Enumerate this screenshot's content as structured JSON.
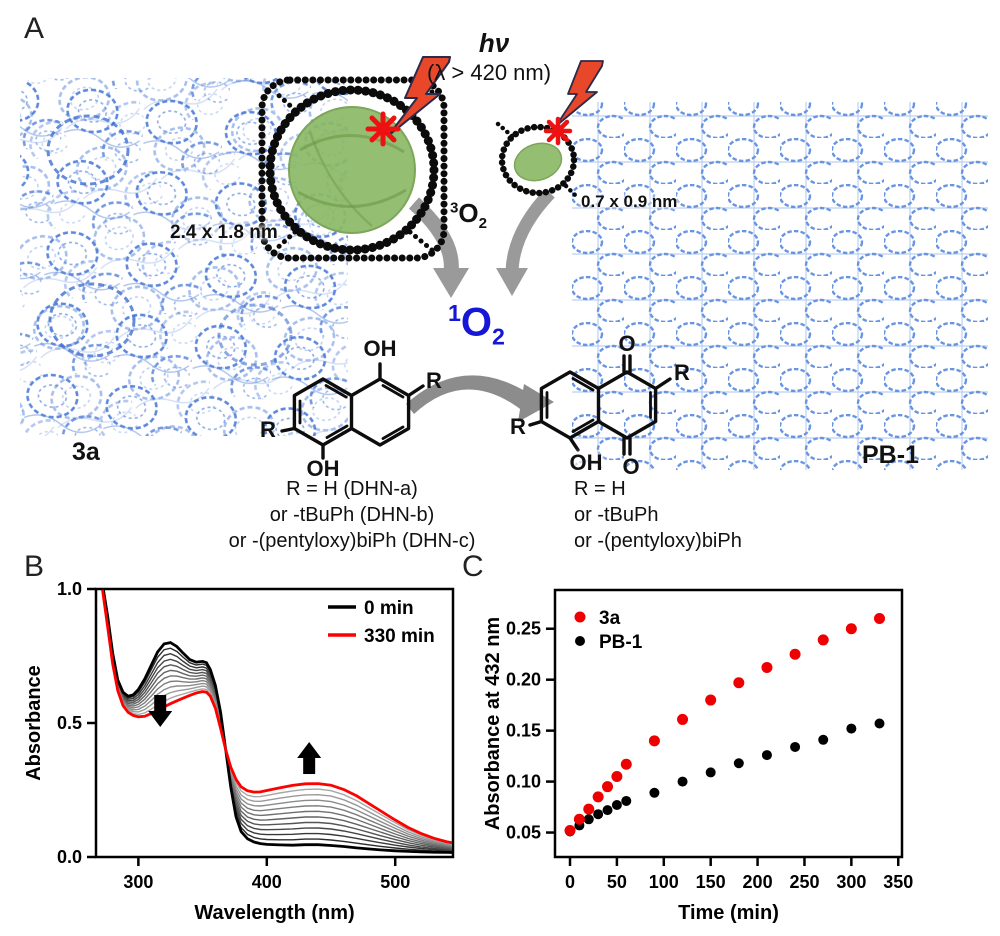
{
  "figure": {
    "panel_a": {
      "label": "A",
      "hv": "hν",
      "wavelength_condition": "(λ > 420 nm)",
      "pore_size_left": "2.4 x 1.8 nm",
      "pore_size_right": "0.7 x 0.9 nm",
      "triplet_oxygen": {
        "sup": "3",
        "o": "O",
        "sub": "2"
      },
      "singlet_oxygen": {
        "sup": "1",
        "o": "O",
        "sub": "2"
      },
      "material_left": "3a",
      "material_right": "PB-1",
      "dhn_labels": {
        "oh_top": "OH",
        "r_top": "R",
        "r_bottom": "R",
        "oh_bottom": "OH"
      },
      "product_labels": {
        "o_top": "O",
        "r_top": "R",
        "r_left": "R",
        "oh_bottom": "OH",
        "o_bottom": "O"
      },
      "substituents_left": [
        "R = H (DHN-a)",
        "or -tBuPh (DHN-b)",
        "or -(pentyloxy)biPh (DHN-c)"
      ],
      "substituents_right": [
        "R = H",
        "or -tBuPh",
        "or -(pentyloxy)biPh"
      ],
      "colors": {
        "framework_blue": "#4f7ed8",
        "framework_blue_right": "#5b8ce0",
        "pore_green": "#8cba68",
        "lightning_red": "#e8472a",
        "spark_red": "#ee1111",
        "singlet_blue": "#1616d6",
        "arrow_gray": "#8c8c8c"
      }
    },
    "panel_b": {
      "label": "B"
    },
    "panel_c": {
      "label": "C"
    }
  },
  "chart_data": [
    {
      "id": "panel-b",
      "type": "line",
      "xlabel": "Wavelength (nm)",
      "ylabel": "Absorbance",
      "xlim": [
        267,
        545
      ],
      "ylim": [
        0,
        1.0
      ],
      "x_ticks": [
        300,
        400,
        500
      ],
      "x_tick_labels": [
        "300",
        "400",
        "500"
      ],
      "y_ticks": [
        0.0,
        0.5,
        1.0
      ],
      "y_tick_labels": [
        "0.0",
        "0.5",
        "1.0"
      ],
      "legend": [
        {
          "label": "0 min",
          "color": "#000000"
        },
        {
          "label": "330 min",
          "color": "#ff0000"
        }
      ],
      "intermediate_curves": 10,
      "wavelength_nm": [
        267,
        272,
        276,
        280,
        284,
        288,
        292,
        296,
        300,
        305,
        310,
        315,
        320,
        325,
        330,
        335,
        340,
        345,
        350,
        353,
        356,
        360,
        364,
        368,
        372,
        376,
        380,
        385,
        390,
        395,
        400,
        410,
        420,
        430,
        440,
        450,
        460,
        470,
        480,
        490,
        500,
        510,
        520,
        530,
        540,
        550
      ],
      "series": [
        {
          "name": "0 min",
          "color": "#000000",
          "values": [
            1.08,
            1.02,
            0.9,
            0.76,
            0.66,
            0.615,
            0.6,
            0.605,
            0.625,
            0.665,
            0.715,
            0.765,
            0.795,
            0.8,
            0.785,
            0.76,
            0.737,
            0.727,
            0.73,
            0.725,
            0.7,
            0.64,
            0.54,
            0.4,
            0.26,
            0.15,
            0.095,
            0.068,
            0.056,
            0.05,
            0.047,
            0.045,
            0.044,
            0.046,
            0.046,
            0.043,
            0.039,
            0.034,
            0.03,
            0.026,
            0.023,
            0.021,
            0.019,
            0.018,
            0.017,
            0.016
          ]
        },
        {
          "name": "330 min",
          "color": "#ff0000",
          "values": [
            1.08,
            1.0,
            0.86,
            0.72,
            0.62,
            0.565,
            0.54,
            0.528,
            0.523,
            0.525,
            0.535,
            0.548,
            0.56,
            0.572,
            0.583,
            0.593,
            0.603,
            0.612,
            0.617,
            0.615,
            0.6,
            0.555,
            0.48,
            0.4,
            0.335,
            0.29,
            0.262,
            0.247,
            0.242,
            0.243,
            0.248,
            0.258,
            0.267,
            0.273,
            0.274,
            0.268,
            0.252,
            0.228,
            0.198,
            0.168,
            0.138,
            0.11,
            0.088,
            0.07,
            0.057,
            0.048
          ]
        }
      ],
      "annotations": [
        {
          "dir": "down",
          "x_nm": 317,
          "y_tip": 0.485
        },
        {
          "dir": "up",
          "x_nm": 433,
          "y_tip": 0.429
        }
      ]
    },
    {
      "id": "panel-c",
      "type": "scatter",
      "xlabel": "Time (min)",
      "ylabel": "Absorbance at 432 nm",
      "xlim": [
        -16,
        354
      ],
      "ylim": [
        0.026,
        0.288
      ],
      "x_ticks": [
        0,
        50,
        100,
        150,
        200,
        250,
        300,
        350
      ],
      "x_tick_labels": [
        "0",
        "50",
        "100",
        "150",
        "200",
        "250",
        "300",
        "350"
      ],
      "y_ticks": [
        0.05,
        0.1,
        0.15,
        0.2,
        0.25
      ],
      "y_tick_labels": [
        "0.05",
        "0.10",
        "0.15",
        "0.20",
        "0.25"
      ],
      "x": [
        0,
        10,
        20,
        30,
        40,
        50,
        60,
        90,
        120,
        150,
        180,
        210,
        240,
        270,
        300,
        330
      ],
      "series": [
        {
          "name": "3a",
          "color": "#ee0000",
          "values": [
            0.052,
            0.063,
            0.073,
            0.085,
            0.095,
            0.105,
            0.117,
            0.14,
            0.161,
            0.18,
            0.197,
            0.212,
            0.225,
            0.239,
            0.25,
            0.26
          ]
        },
        {
          "name": "PB-1",
          "color": "#000000",
          "values": [
            0.051,
            0.057,
            0.063,
            0.068,
            0.072,
            0.077,
            0.081,
            0.089,
            0.1,
            0.109,
            0.118,
            0.126,
            0.134,
            0.141,
            0.152,
            0.157
          ]
        }
      ]
    }
  ]
}
